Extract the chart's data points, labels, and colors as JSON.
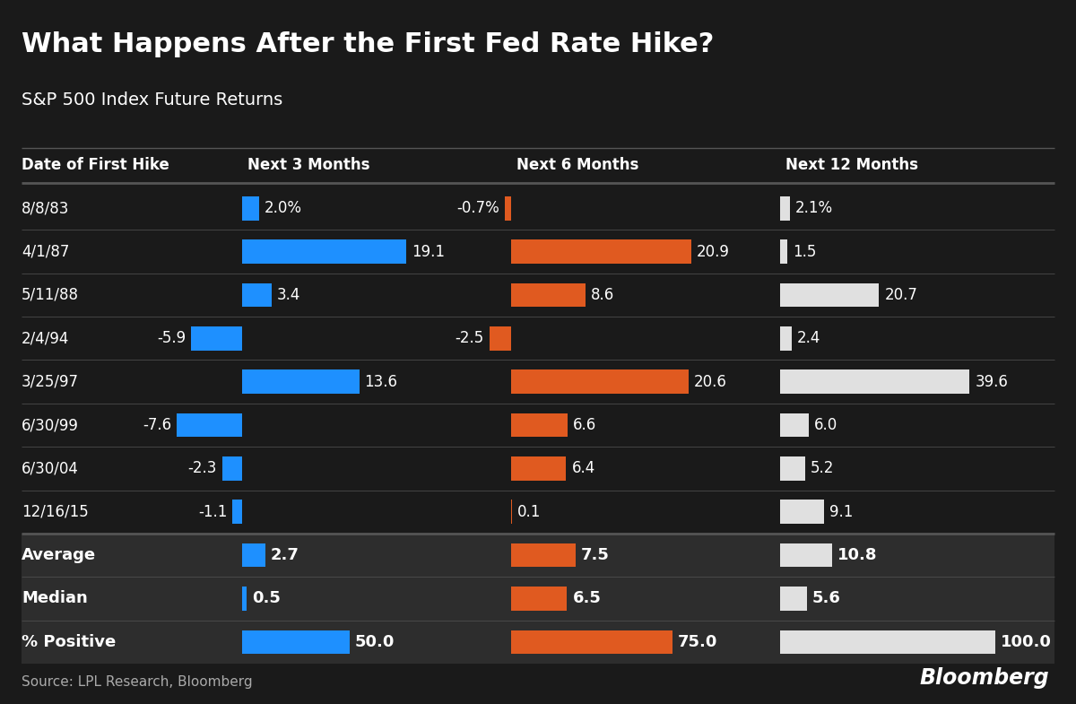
{
  "title": "What Happens After the First Fed Rate Hike?",
  "subtitle": "S&P 500 Index Future Returns",
  "source": "Source: LPL Research, Bloomberg",
  "col_headers": [
    "Date of First Hike",
    "Next 3 Months",
    "Next 6 Months",
    "Next 12 Months"
  ],
  "dates": [
    "8/8/83",
    "4/1/87",
    "5/11/88",
    "2/4/94",
    "3/25/97",
    "6/30/99",
    "6/30/04",
    "12/16/15",
    "Average",
    "Median",
    "% Positive"
  ],
  "three_months": [
    2.0,
    19.1,
    3.4,
    -5.9,
    13.6,
    -7.6,
    -2.3,
    -1.1,
    2.7,
    0.5,
    50.0
  ],
  "six_months": [
    -0.7,
    20.9,
    8.6,
    -2.5,
    20.6,
    6.6,
    6.4,
    0.1,
    7.5,
    6.5,
    75.0
  ],
  "twelve_months": [
    2.1,
    1.5,
    20.7,
    2.4,
    39.6,
    6.0,
    5.2,
    9.1,
    10.8,
    5.6,
    100.0
  ],
  "three_months_labels": [
    "2.0%",
    "19.1",
    "3.4",
    "-5.9",
    "13.6",
    "-7.6",
    "-2.3",
    "-1.1",
    "2.7",
    "0.5",
    "50.0"
  ],
  "six_months_labels": [
    "-0.7%",
    "20.9",
    "8.6",
    "-2.5",
    "20.6",
    "6.6",
    "6.4",
    "0.1",
    "7.5",
    "6.5",
    "75.0"
  ],
  "twelve_months_labels": [
    "2.1%",
    "1.5",
    "20.7",
    "2.4",
    "39.6",
    "6.0",
    "5.2",
    "9.1",
    "10.8",
    "5.6",
    "100.0"
  ],
  "bg_color": "#1a1a1a",
  "text_color": "#ffffff",
  "summary_row_color": "#2d2d2d",
  "blue_color": "#1e90ff",
  "orange_color": "#e05a20",
  "white_color": "#e0e0e0",
  "divider_color": "#555555"
}
